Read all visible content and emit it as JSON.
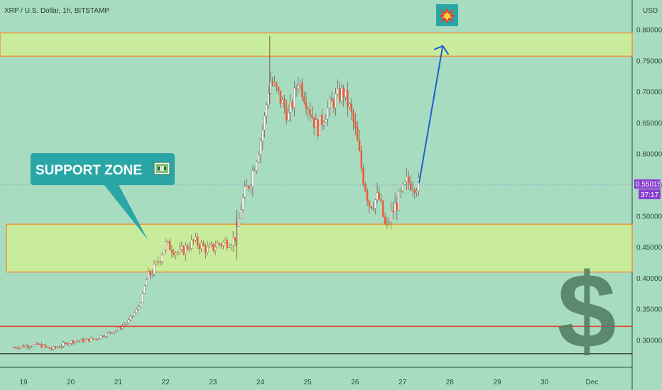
{
  "header": {
    "symbol_title": "XRP / U.S. Dollar, 1h, BITSTAMP"
  },
  "price_axis": {
    "currency": "USD",
    "current_price_label": "0.55015",
    "countdown_label": "37:17"
  },
  "annotations": {
    "support_label": "SUPPORT ZONE",
    "support_emoji_icon": "money-banknote-icon",
    "target_icon": "explosion-icon",
    "dollar_glyph": "$"
  },
  "colors": {
    "background": "#a8dcc0",
    "zone_fill": "#c9ec9c",
    "zone_border": "#f08a2c",
    "candle_up": "#ffffff",
    "candle_down": "#ef5a35",
    "callout_bg": "#2aa6a6",
    "arrow": "#1f5fd0",
    "support_line": "#e0452a",
    "bottom_line": "#1a1a1a",
    "price_tag": "#8a3fd0",
    "dollar": "#4f7a62"
  },
  "chart_data": {
    "type": "candlestick",
    "title": "XRP / U.S. Dollar, 1h, BITSTAMP",
    "ylabel": "USD",
    "ylim": [
      0.255,
      0.81
    ],
    "y_ticks": [
      "0.80000",
      "0.75000",
      "0.70000",
      "0.65000",
      "0.60000",
      "0.55000",
      "0.50000",
      "0.45000",
      "0.40000",
      "0.35000",
      "0.30000"
    ],
    "x_ticks": [
      "19",
      "20",
      "21",
      "22",
      "23",
      "24",
      "25",
      "26",
      "27",
      "28",
      "29",
      "30",
      "Dec"
    ],
    "price_path": [
      {
        "d": 18.8,
        "p": 0.289
      },
      {
        "d": 19.3,
        "p": 0.293
      },
      {
        "d": 19.6,
        "p": 0.286
      },
      {
        "d": 20.0,
        "p": 0.298
      },
      {
        "d": 20.5,
        "p": 0.302
      },
      {
        "d": 20.8,
        "p": 0.312
      },
      {
        "d": 21.0,
        "p": 0.318
      },
      {
        "d": 21.2,
        "p": 0.33
      },
      {
        "d": 21.4,
        "p": 0.35
      },
      {
        "d": 21.5,
        "p": 0.37
      },
      {
        "d": 21.6,
        "p": 0.4
      },
      {
        "d": 21.8,
        "p": 0.42
      },
      {
        "d": 22.0,
        "p": 0.455
      },
      {
        "d": 22.3,
        "p": 0.44
      },
      {
        "d": 22.6,
        "p": 0.46
      },
      {
        "d": 22.9,
        "p": 0.445
      },
      {
        "d": 23.1,
        "p": 0.455
      },
      {
        "d": 23.4,
        "p": 0.46
      },
      {
        "d": 23.5,
        "p": 0.47
      },
      {
        "d": 23.6,
        "p": 0.52
      },
      {
        "d": 23.8,
        "p": 0.56
      },
      {
        "d": 24.0,
        "p": 0.62
      },
      {
        "d": 24.1,
        "p": 0.66
      },
      {
        "d": 24.2,
        "p": 0.72
      },
      {
        "d": 24.35,
        "p": 0.7
      },
      {
        "d": 24.6,
        "p": 0.66
      },
      {
        "d": 24.8,
        "p": 0.72
      },
      {
        "d": 25.0,
        "p": 0.68
      },
      {
        "d": 25.2,
        "p": 0.64
      },
      {
        "d": 25.4,
        "p": 0.67
      },
      {
        "d": 25.6,
        "p": 0.69
      },
      {
        "d": 25.75,
        "p": 0.7
      },
      {
        "d": 25.9,
        "p": 0.67
      },
      {
        "d": 26.0,
        "p": 0.64
      },
      {
        "d": 26.15,
        "p": 0.57
      },
      {
        "d": 26.3,
        "p": 0.52
      },
      {
        "d": 26.5,
        "p": 0.53
      },
      {
        "d": 26.65,
        "p": 0.48
      },
      {
        "d": 26.8,
        "p": 0.51
      },
      {
        "d": 26.95,
        "p": 0.53
      },
      {
        "d": 27.1,
        "p": 0.555
      },
      {
        "d": 27.35,
        "p": 0.55
      }
    ],
    "zones": [
      {
        "name": "resistance",
        "low": 0.7575,
        "high": 0.795
      },
      {
        "name": "support",
        "low": 0.41,
        "high": 0.487
      }
    ],
    "levels": [
      {
        "name": "support-line",
        "value": 0.3225
      },
      {
        "name": "bottom-line",
        "value": 0.2785
      },
      {
        "name": "current-price",
        "value": 0.55015
      }
    ],
    "projection": {
      "from": {
        "d": 27.35,
        "p": 0.553
      },
      "to": {
        "d": 28.0,
        "p": 0.774
      }
    },
    "grid": false,
    "legend": "none"
  }
}
